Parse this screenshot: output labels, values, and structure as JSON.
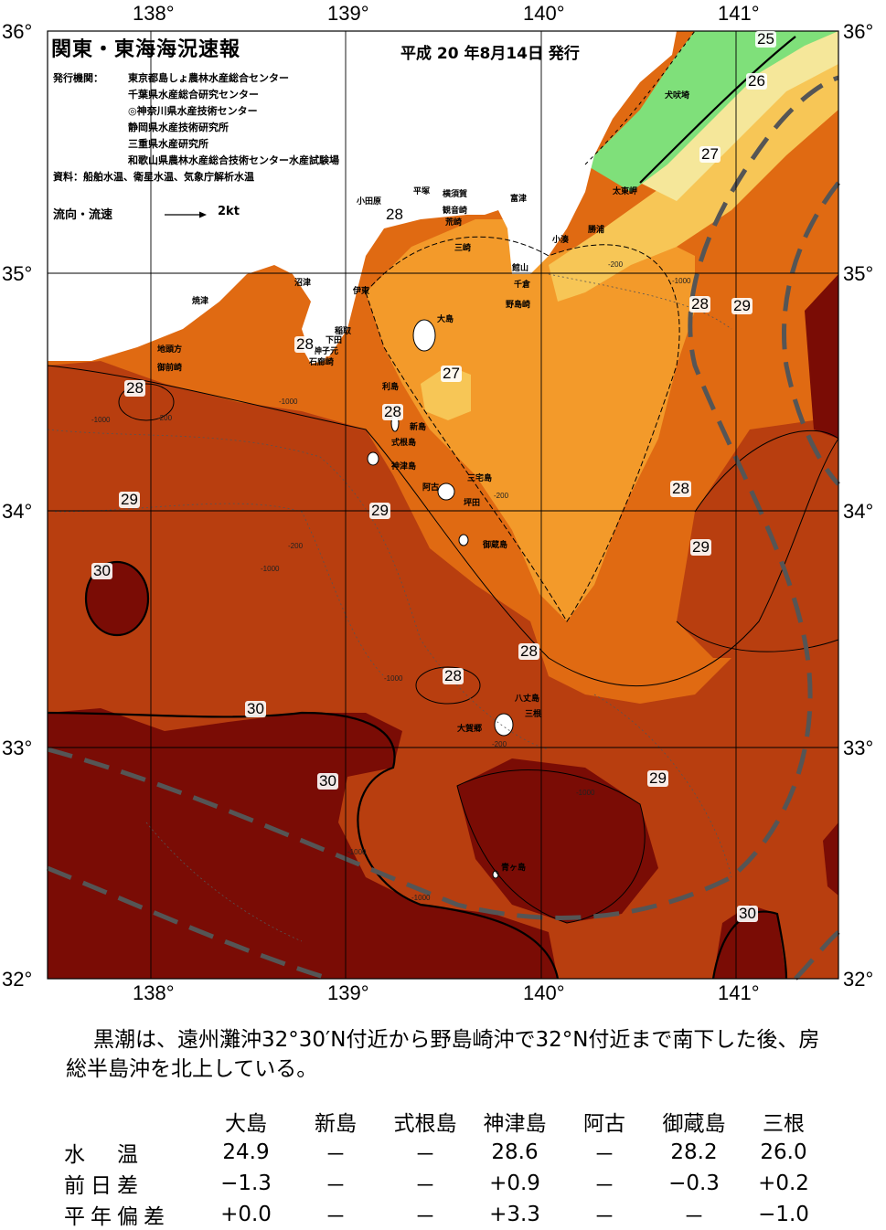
{
  "header": {
    "title": "関東・東海海況速報",
    "issue_date": "平成 20 年8月14日 発行",
    "agency_label": "発行機関：",
    "agencies": [
      "東京都島しょ農林水産総合センター",
      "千葉県水産総合研究センター",
      "◎神奈川県水産技術センター",
      "静岡県水産技術研究所",
      "三重県水産研究所",
      "和歌山県農林水産総合技術センター水産試験場"
    ],
    "sources": "資料：船舶水温、衛星水温、気象庁解析水温",
    "legend_label": "流向・流速",
    "legend_speed": "2kt"
  },
  "axes": {
    "lon_ticks": [
      "138°",
      "139°",
      "140°",
      "141°"
    ],
    "lat_ticks": [
      "36°",
      "35°",
      "34°",
      "33°",
      "32°"
    ]
  },
  "places": [
    {
      "id": "inubozaki",
      "label": "犬吠埼"
    },
    {
      "id": "taitomisaki",
      "label": "太東岬"
    },
    {
      "id": "katsuura",
      "label": "勝浦"
    },
    {
      "id": "kominato",
      "label": "小湊"
    },
    {
      "id": "futtsu",
      "label": "富津"
    },
    {
      "id": "tateyama",
      "label": "館山"
    },
    {
      "id": "chikura",
      "label": "千倉"
    },
    {
      "id": "nojimazaki",
      "label": "野島崎"
    },
    {
      "id": "hiratsuka",
      "label": "平塚"
    },
    {
      "id": "yokosuka",
      "label": "横須賀"
    },
    {
      "id": "kannonzaki",
      "label": "観音崎"
    },
    {
      "id": "arasaki",
      "label": "荒崎"
    },
    {
      "id": "misaki",
      "label": "三崎"
    },
    {
      "id": "odawara",
      "label": "小田原"
    },
    {
      "id": "numazu",
      "label": "沼津"
    },
    {
      "id": "ito",
      "label": "伊東"
    },
    {
      "id": "inatori",
      "label": "稲取"
    },
    {
      "id": "shimoda",
      "label": "下田"
    },
    {
      "id": "mikomoto",
      "label": "神子元"
    },
    {
      "id": "irozaki",
      "label": "石廊崎"
    },
    {
      "id": "yaizu",
      "label": "焼津"
    },
    {
      "id": "jitogata",
      "label": "地頭方"
    },
    {
      "id": "omaezaki",
      "label": "御前崎"
    },
    {
      "id": "oshima",
      "label": "大島"
    },
    {
      "id": "toshima",
      "label": "利島"
    },
    {
      "id": "niijima",
      "label": "新島"
    },
    {
      "id": "shikinejima",
      "label": "式根島"
    },
    {
      "id": "kozushima",
      "label": "神津島"
    },
    {
      "id": "miyakejima",
      "label": "三宅島"
    },
    {
      "id": "ako",
      "label": "阿古"
    },
    {
      "id": "tsubota",
      "label": "坪田"
    },
    {
      "id": "mikurajima",
      "label": "御蔵島"
    },
    {
      "id": "hachijojima",
      "label": "八丈島"
    },
    {
      "id": "mine",
      "label": "三根"
    },
    {
      "id": "okago",
      "label": "大賀郷"
    },
    {
      "id": "aogashima",
      "label": "青ヶ島"
    }
  ],
  "isotherm_labels": [
    {
      "id": "t25",
      "label": "25"
    },
    {
      "id": "t26",
      "label": "26"
    },
    {
      "id": "t27a",
      "label": "27"
    },
    {
      "id": "t28a",
      "label": "28"
    },
    {
      "id": "t28b",
      "label": "28"
    },
    {
      "id": "t27b",
      "label": "27"
    },
    {
      "id": "t28c",
      "label": "28"
    },
    {
      "id": "t28d",
      "label": "28"
    },
    {
      "id": "t29a",
      "label": "29"
    },
    {
      "id": "t28e",
      "label": "28"
    },
    {
      "id": "t29b",
      "label": "29"
    },
    {
      "id": "t29c",
      "label": "29"
    },
    {
      "id": "t28f",
      "label": "28"
    },
    {
      "id": "t30a",
      "label": "30"
    },
    {
      "id": "t29d",
      "label": "29"
    },
    {
      "id": "t28g",
      "label": "28"
    },
    {
      "id": "t28h",
      "label": "28"
    },
    {
      "id": "t30b",
      "label": "30"
    },
    {
      "id": "t30c",
      "label": "30"
    },
    {
      "id": "t29e",
      "label": "29"
    },
    {
      "id": "t30d",
      "label": "30"
    }
  ],
  "depth_labels": [
    "-200",
    "-1000"
  ],
  "colors": {
    "water_30": "#7a0c05",
    "water_29": "#b83e0f",
    "water_28": "#e06a12",
    "water_27": "#f39a2a",
    "water_26": "#f7c656",
    "water_25": "#f5e79a",
    "water_cold": "#7fe07a",
    "kuroshio_axis": "#555555",
    "land": "#ffffff"
  },
  "summary": "黒潮は、遠州灘沖32°30′N付近から野島崎沖で32°N付近まで南下した後、房総半島沖を北上している。",
  "table": {
    "columns": [
      "大島",
      "新島",
      "式根島",
      "神津島",
      "阿古",
      "御蔵島",
      "三根"
    ],
    "rows": [
      {
        "label": "水　温",
        "values": [
          "24.9",
          "－",
          "－",
          "28.6",
          "－",
          "28.2",
          "26.0"
        ]
      },
      {
        "label": "前日差",
        "values": [
          "−1.3",
          "－",
          "－",
          "+0.9",
          "－",
          "−0.3",
          "+0.2"
        ]
      },
      {
        "label": "平年偏差",
        "values": [
          "+0.0",
          "－",
          "－",
          "+3.3",
          "－",
          "－",
          "−1.0"
        ]
      }
    ]
  }
}
